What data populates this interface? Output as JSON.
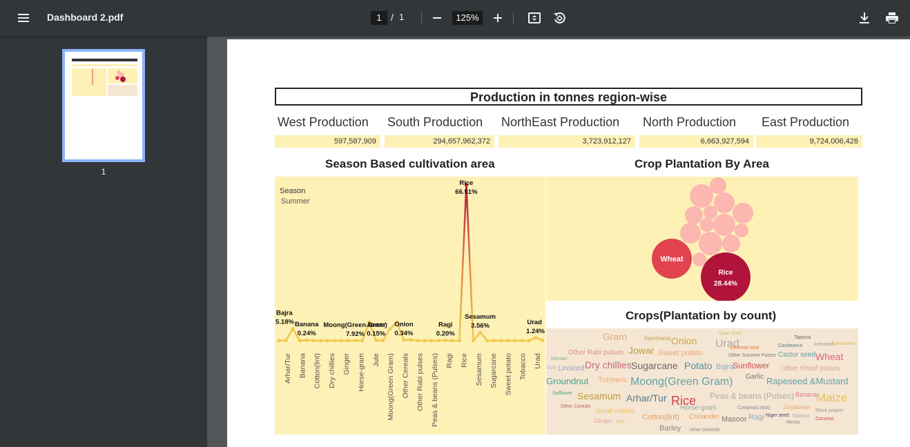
{
  "toolbar": {
    "title": "Dashboard 2.pdf",
    "page_current": "1",
    "page_separator": "/",
    "page_total": "1",
    "zoom": "125%"
  },
  "sidebar": {
    "thumbnail_label": "1"
  },
  "report": {
    "title": "Production in tonnes region-wise",
    "regions": [
      {
        "label": "West Production",
        "value": "597,587,909"
      },
      {
        "label": "South Production",
        "value": "294,657,962,372"
      },
      {
        "label": "NorthEast Production",
        "value": "3,723,912,127"
      },
      {
        "label": "North Production",
        "value": "6,663,927,594"
      },
      {
        "label": "East Production",
        "value": "9,724,006,428"
      }
    ],
    "season_title": "Season Based cultivation area",
    "season_legend_title": "Season",
    "season_legend_value": "Summer",
    "plantation_title": "Crop Plantation By Area",
    "cloud_title": "Crops(Plantation by count)"
  },
  "colors": {
    "panel_yellow": "#fdf1b6",
    "cloud_bg": "#f5e6d3",
    "line_low": "#f2c94c",
    "line_high": "#b5143c",
    "bubble_light": "#fbb7b0",
    "wheat": "#e0434f",
    "rice": "#b0143a"
  },
  "chart_data": [
    {
      "type": "line",
      "title": "Season Based cultivation area",
      "legend": {
        "title": "Season",
        "value": "Summer"
      },
      "categories": [
        "Arhar/Tur",
        "Bajra",
        "Banana",
        "Cotton(lint)",
        "Dry chillies",
        "Ginger",
        "Horse-gram",
        "Jowar",
        "Jute",
        "Moong(Green Gram)",
        "Onion",
        "Other Cereals",
        "Other Rabi pulses",
        "Peas & beans (Pulses)",
        "Ragi",
        "Rice",
        "Sesamum",
        "Sugarcane",
        "Sweet potato",
        "Tobacco",
        "Urad"
      ],
      "tick_labels": [
        "Arhar/Tur",
        "Banana",
        "Cotton(lint)",
        "Dry chillies",
        "Ginger",
        "Horse-gram",
        "Jute",
        "Moong(Green Gram)",
        "Other Cereals",
        "Other Rabi pulses",
        "Peas & beans (Pulses)",
        "Ragi",
        "Rice",
        "Sesamum",
        "Sugarcane",
        "Sweet potato",
        "Tobacco",
        "Urad"
      ],
      "values": [
        0.05,
        5.18,
        0.24,
        0.05,
        0.05,
        0.05,
        0.05,
        0.15,
        0.05,
        7.92,
        0.34,
        0.05,
        0.05,
        0.05,
        0.2,
        66.51,
        3.56,
        0.05,
        0.05,
        0.05,
        1.24
      ],
      "points": [
        0.05,
        0.05,
        5.18,
        0.05,
        0.24,
        0.05,
        0.05,
        0.05,
        0.05,
        0.05,
        0.05,
        0.05,
        0.05,
        7.92,
        0.15,
        0.15,
        5.0,
        7.92,
        0.34,
        0.34,
        0.05,
        0.05,
        0.05,
        0.05,
        0.2,
        0.05,
        0.05,
        66.51,
        0.05,
        3.56,
        0.05,
        0.05,
        0.05,
        0.05,
        0.05,
        0.05,
        0.05,
        1.24,
        0.2
      ],
      "labels": [
        {
          "name": "Bajra",
          "value": "5.18%",
          "index": 2
        },
        {
          "name": "Banana",
          "value": "0.24%",
          "index": 4
        },
        {
          "name": "Moong(Green Gram)",
          "value": "7.92%",
          "index": 11
        },
        {
          "name": "Jowar",
          "value": "0.15%",
          "index": 14
        },
        {
          "name": "Onion",
          "value": "0.34%",
          "index": 18
        },
        {
          "name": "Ragi",
          "value": "0.20%",
          "index": 24
        },
        {
          "name": "Rice",
          "value": "66.51%",
          "index": 27
        },
        {
          "name": "Sesamum",
          "value": "3.56%",
          "index": 29
        },
        {
          "name": "Urad",
          "value": "1.24%",
          "index": 37
        }
      ]
    },
    {
      "type": "bubble",
      "title": "Crop Plantation By Area",
      "labeled": [
        {
          "name": "Wheat",
          "value": ""
        },
        {
          "name": "Rice",
          "value": "28.44%"
        }
      ]
    },
    {
      "type": "wordcloud",
      "title": "Crops(Plantation by count)",
      "words": [
        "Gram",
        "Sannhamp",
        "Onion",
        "Guar seed",
        "Tapioca",
        "Urad",
        "Oilseeds total",
        "Cashewnut",
        "Arecanut",
        "Cardamom",
        "Other Rabi pulses",
        "Jowar",
        "Sweet potato",
        "Other Summer Pulses",
        "Castor seed",
        "Wheat",
        "Khesari",
        "Dry chillies",
        "Sugarcane",
        "Potato",
        "Bajra",
        "Sunflower",
        "Moth",
        "Linseed",
        "Other Kharif pulses",
        "Garlic",
        "Groundnut",
        "Turmeric",
        "Moong(Green Gram)",
        "Rapeseed &Mustard",
        "Safflower",
        "Sesamum",
        "Arhar/Tur",
        "Rice",
        "Peas & beans (Pulses)",
        "Banana",
        "Maize",
        "Other Cereals",
        "Horse-gram",
        "Cowpea(Lobia)",
        "Soyabean",
        "Small millets",
        "Black pepper",
        "Ginger",
        "Jute",
        "Cotton(lint)",
        "Coriander",
        "Masoor",
        "Ragi",
        "Niger seed",
        "Tobacco",
        "Coconut",
        "Mesta",
        "Barley",
        "other oilseeds"
      ]
    }
  ]
}
